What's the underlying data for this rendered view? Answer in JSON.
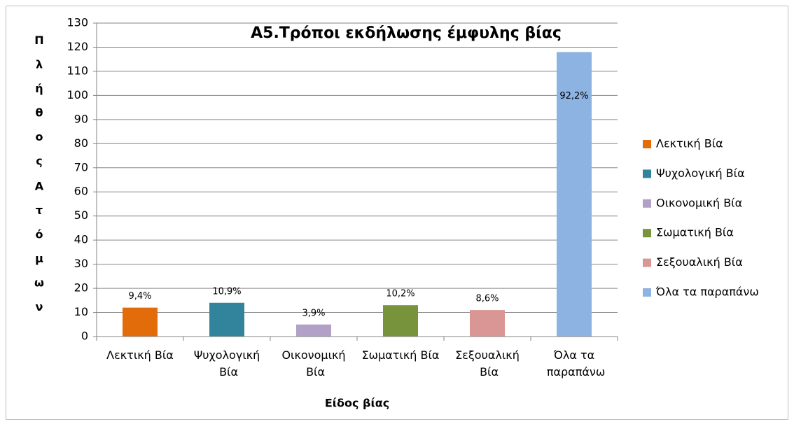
{
  "chart_data": {
    "type": "bar",
    "title": "A5.Τρόποι  εκδήλωσης έμφυλης βίας",
    "xlabel": "Είδος βίας",
    "ylabel": "Πλήθος Ατόμων",
    "categories": [
      "Λεκτική Βία",
      "Ψυχολογική Βία",
      "Οικονομική Βία",
      "Σωματική Βία",
      "Σεξουαλική Βία",
      "Όλα τα παραπάνω"
    ],
    "values": [
      12,
      14,
      5,
      13,
      11,
      118
    ],
    "annotations": [
      "9,4%",
      "10,9%",
      "3,9%",
      "10,2%",
      "8,6%",
      "92,2%"
    ],
    "colors": [
      "#e36c0a",
      "#31849b",
      "#b2a1c7",
      "#77933c",
      "#d99694",
      "#8db3e2"
    ],
    "ylim": [
      0,
      130
    ],
    "yticks": [
      0,
      10,
      20,
      30,
      40,
      50,
      60,
      70,
      80,
      90,
      100,
      110,
      120,
      130
    ],
    "grid": true,
    "legend": "right"
  }
}
